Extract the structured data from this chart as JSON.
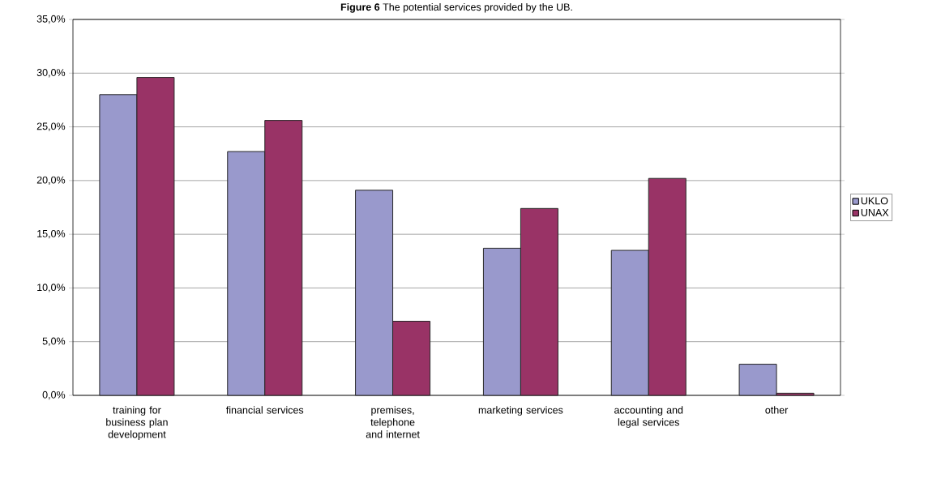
{
  "chart_data": {
    "type": "bar",
    "title": "**Figure 6** The potential services provided by the UB.",
    "categories": [
      "training for business plan development",
      "financial services",
      "premises, telephone and internet",
      "marketing services",
      "accounting and legal services",
      "other"
    ],
    "series": [
      {
        "name": "UKLO",
        "color": "#9999cc",
        "values": [
          28.0,
          22.7,
          19.1,
          13.7,
          13.5,
          2.9
        ]
      },
      {
        "name": "UNAX",
        "color": "#993366",
        "values": [
          29.6,
          25.6,
          6.9,
          17.4,
          20.2,
          0.2
        ]
      }
    ],
    "ylim": [
      0,
      35
    ],
    "yticks": [
      {
        "value": 0,
        "label": "0,0%"
      },
      {
        "value": 5,
        "label": "5,0%"
      },
      {
        "value": 10,
        "label": "10,0%"
      },
      {
        "value": 15,
        "label": "15,0%"
      },
      {
        "value": 20,
        "label": "20,0%"
      },
      {
        "value": 25,
        "label": "25,0%"
      },
      {
        "value": 30,
        "label": "30,0%"
      },
      {
        "value": 35,
        "label": "35,0%"
      }
    ],
    "grid": "y",
    "legend": "right"
  }
}
